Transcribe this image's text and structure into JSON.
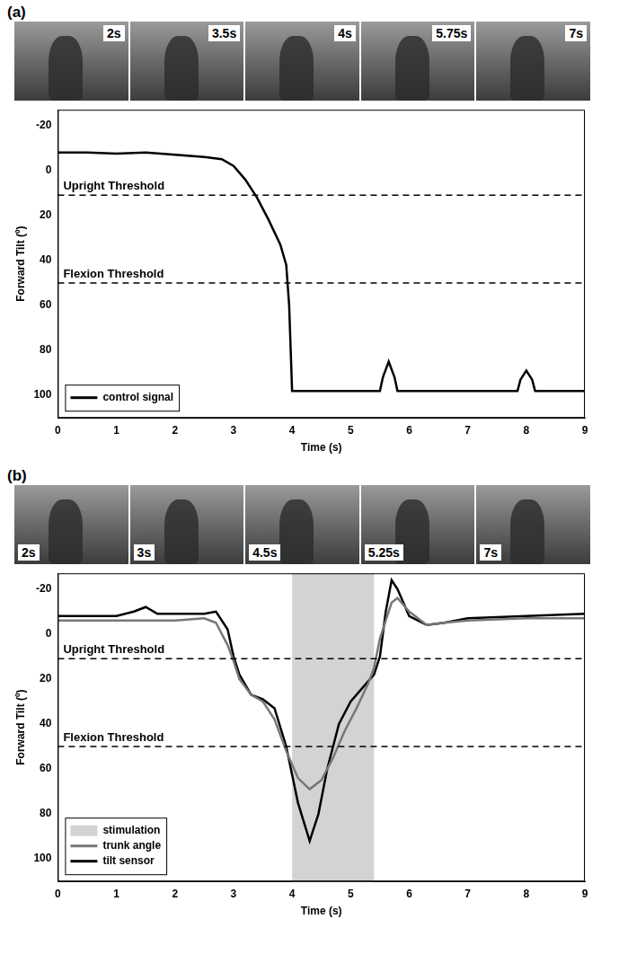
{
  "chart_data": [
    {
      "type": "line",
      "panel": "(a)",
      "photo_labels": [
        "2s",
        "3.5s",
        "4s",
        "5.75s",
        "7s"
      ],
      "x_label": "Time (s)",
      "y_label": "Forward Tilt (º)",
      "xlim": [
        0,
        9
      ],
      "xticks": [
        0,
        1,
        2,
        3,
        4,
        5,
        6,
        7,
        8,
        9
      ],
      "ylim": [
        -27,
        110
      ],
      "yticks": [
        -20,
        0,
        20,
        40,
        60,
        80,
        100
      ],
      "grid": false,
      "legend": "lower left",
      "annotations": [
        {
          "text": "Upright Threshold",
          "y": 11,
          "line_style": "dashed"
        },
        {
          "text": "Flexion Threshold",
          "y": 50,
          "line_style": "dashed"
        }
      ],
      "series": [
        {
          "name": "control signal",
          "color": "#000000",
          "type": "line",
          "x": [
            0,
            0.5,
            1,
            1.5,
            2,
            2.5,
            2.8,
            3.0,
            3.2,
            3.4,
            3.6,
            3.8,
            3.9,
            3.95,
            4.0,
            5.5,
            5.55,
            5.65,
            5.75,
            5.8,
            7.85,
            7.9,
            8.0,
            8.1,
            8.15,
            9
          ],
          "values": [
            -8,
            -8,
            -7.5,
            -8,
            -7,
            -6,
            -5,
            -2,
            4,
            12,
            22,
            33,
            42,
            60,
            98,
            98,
            92,
            85,
            92,
            98,
            98,
            93,
            89,
            93,
            98,
            98
          ]
        }
      ]
    },
    {
      "type": "line",
      "panel": "(b)",
      "photo_labels": [
        "2s",
        "3s",
        "4.5s",
        "5.25s",
        "7s"
      ],
      "x_label": "Time (s)",
      "y_label": "Forward Tilt (º)",
      "xlim": [
        0,
        9
      ],
      "xticks": [
        0,
        1,
        2,
        3,
        4,
        5,
        6,
        7,
        8,
        9
      ],
      "ylim": [
        -27,
        110
      ],
      "yticks": [
        -20,
        0,
        20,
        40,
        60,
        80,
        100
      ],
      "grid": false,
      "legend": "lower left",
      "annotations": [
        {
          "text": "Upright Threshold",
          "y": 11,
          "line_style": "dashed"
        },
        {
          "text": "Flexion Threshold",
          "y": 50,
          "line_style": "dashed"
        }
      ],
      "series": [
        {
          "name": "stimulation",
          "color": "#d3d3d3",
          "type": "span",
          "span": [
            4.0,
            5.4
          ]
        },
        {
          "name": "trunk angle",
          "color": "#777777",
          "type": "line",
          "x": [
            0,
            1,
            1.5,
            2,
            2.5,
            2.7,
            2.9,
            3.0,
            3.1,
            3.3,
            3.5,
            3.7,
            3.9,
            4.1,
            4.3,
            4.5,
            4.7,
            4.9,
            5.1,
            5.3,
            5.4,
            5.5,
            5.7,
            5.8,
            6.0,
            6.3,
            6.6,
            7,
            8,
            9
          ],
          "values": [
            -6,
            -6,
            -6,
            -6,
            -7,
            -5,
            5,
            12,
            20,
            27,
            30,
            38,
            52,
            64,
            69,
            65,
            55,
            43,
            33,
            22,
            15,
            2,
            -14,
            -16,
            -10,
            -4,
            -5,
            -6,
            -7,
            -7
          ]
        },
        {
          "name": "tilt sensor",
          "color": "#000000",
          "type": "line",
          "x": [
            0,
            1,
            1.3,
            1.5,
            1.7,
            2,
            2.5,
            2.7,
            2.9,
            3.0,
            3.1,
            3.3,
            3.5,
            3.7,
            3.9,
            4.1,
            4.3,
            4.45,
            4.6,
            4.8,
            5.0,
            5.2,
            5.4,
            5.5,
            5.6,
            5.7,
            5.8,
            6.0,
            6.3,
            6.6,
            7,
            8,
            9
          ],
          "values": [
            -8,
            -8,
            -10,
            -12,
            -9,
            -9,
            -9,
            -10,
            -2,
            10,
            18,
            27,
            29,
            33,
            50,
            75,
            92,
            80,
            60,
            40,
            30,
            24,
            18,
            10,
            -10,
            -24,
            -20,
            -8,
            -4,
            -5,
            -7,
            -8,
            -9
          ]
        }
      ]
    }
  ]
}
